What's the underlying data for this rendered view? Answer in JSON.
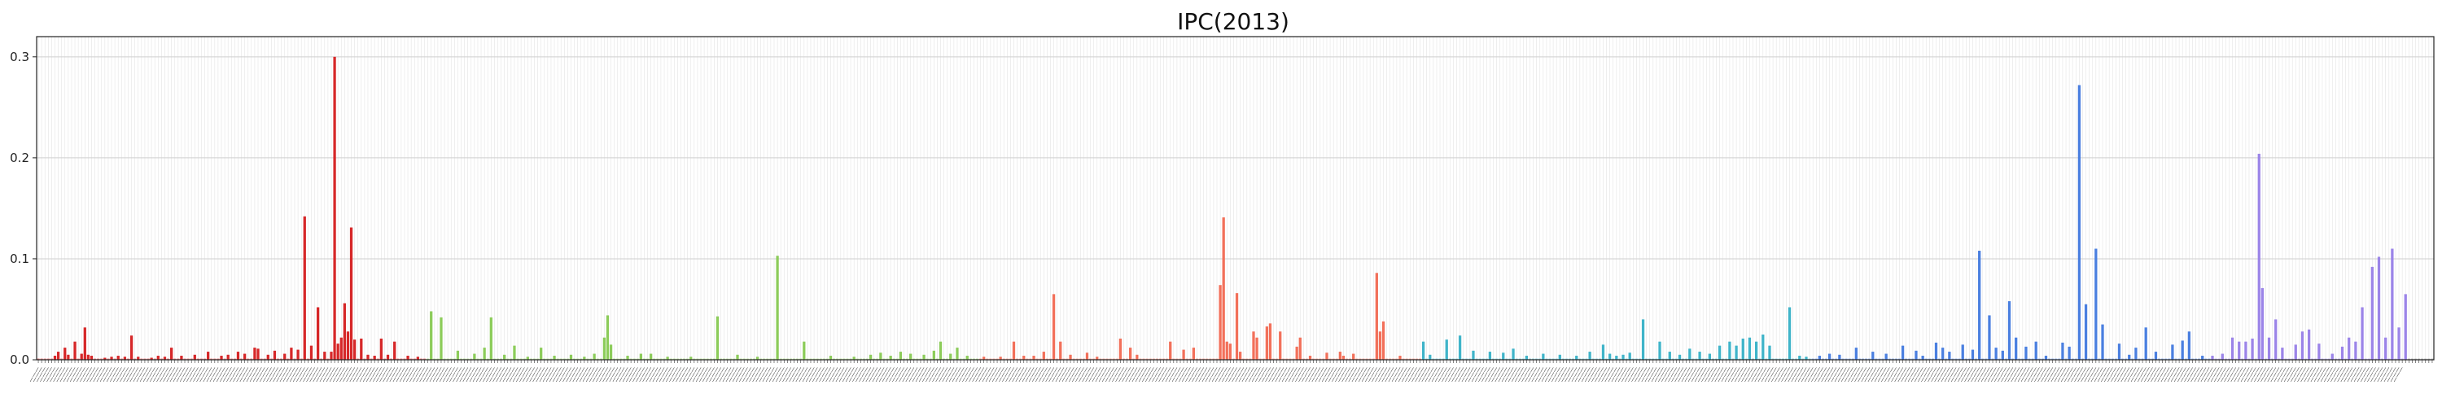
{
  "chart_data": {
    "type": "bar",
    "title": "IPC(2013)",
    "xlabel": "",
    "ylabel": "",
    "ylim": [
      0,
      0.32
    ],
    "y_ticks": [
      0.0,
      0.1,
      0.2,
      0.3
    ],
    "y_tick_labels": [
      "0.0",
      "0.1",
      "0.2",
      "0.3"
    ],
    "grid": true,
    "bar_count": 720,
    "group_colors": [
      "#d62728",
      "#8ccc5a",
      "#f2705a",
      "#3fb4c9",
      "#4a7fe0",
      "#9b84e8"
    ],
    "groups": [
      {
        "color": "#d62728",
        "start": 0,
        "end": 117,
        "bars": [
          [
            5,
            0.004
          ],
          [
            6,
            0.008
          ],
          [
            8,
            0.012
          ],
          [
            9,
            0.005
          ],
          [
            11,
            0.018
          ],
          [
            13,
            0.006
          ],
          [
            14,
            0.032
          ],
          [
            15,
            0.005
          ],
          [
            16,
            0.004
          ],
          [
            20,
            0.002
          ],
          [
            22,
            0.003
          ],
          [
            24,
            0.004
          ],
          [
            26,
            0.003
          ],
          [
            28,
            0.024
          ],
          [
            30,
            0.003
          ],
          [
            34,
            0.002
          ],
          [
            36,
            0.004
          ],
          [
            38,
            0.003
          ],
          [
            40,
            0.012
          ],
          [
            43,
            0.004
          ],
          [
            47,
            0.005
          ],
          [
            51,
            0.008
          ],
          [
            55,
            0.004
          ],
          [
            57,
            0.005
          ],
          [
            60,
            0.008
          ],
          [
            62,
            0.006
          ],
          [
            65,
            0.012
          ],
          [
            66,
            0.011
          ],
          [
            69,
            0.005
          ],
          [
            71,
            0.009
          ],
          [
            74,
            0.006
          ],
          [
            76,
            0.012
          ],
          [
            78,
            0.01
          ],
          [
            80,
            0.142
          ],
          [
            82,
            0.014
          ],
          [
            84,
            0.052
          ],
          [
            86,
            0.008
          ],
          [
            88,
            0.008
          ],
          [
            89,
            0.3
          ],
          [
            90,
            0.016
          ],
          [
            91,
            0.022
          ],
          [
            92,
            0.056
          ],
          [
            93,
            0.028
          ],
          [
            94,
            0.131
          ],
          [
            95,
            0.02
          ],
          [
            97,
            0.021
          ],
          [
            99,
            0.005
          ],
          [
            101,
            0.004
          ],
          [
            103,
            0.021
          ],
          [
            105,
            0.005
          ],
          [
            107,
            0.018
          ],
          [
            111,
            0.004
          ],
          [
            114,
            0.003
          ]
        ]
      },
      {
        "color": "#8ccc5a",
        "start": 117,
        "end": 283,
        "bars": [
          [
            118,
            0.048
          ],
          [
            121,
            0.042
          ],
          [
            126,
            0.009
          ],
          [
            131,
            0.006
          ],
          [
            134,
            0.012
          ],
          [
            136,
            0.042
          ],
          [
            140,
            0.005
          ],
          [
            143,
            0.014
          ],
          [
            147,
            0.003
          ],
          [
            151,
            0.012
          ],
          [
            155,
            0.004
          ],
          [
            160,
            0.005
          ],
          [
            164,
            0.003
          ],
          [
            167,
            0.006
          ],
          [
            170,
            0.022
          ],
          [
            171,
            0.044
          ],
          [
            172,
            0.015
          ],
          [
            177,
            0.004
          ],
          [
            181,
            0.006
          ],
          [
            184,
            0.006
          ],
          [
            189,
            0.003
          ],
          [
            196,
            0.003
          ],
          [
            204,
            0.043
          ],
          [
            210,
            0.005
          ],
          [
            216,
            0.003
          ],
          [
            222,
            0.103
          ],
          [
            230,
            0.018
          ],
          [
            238,
            0.004
          ],
          [
            245,
            0.003
          ],
          [
            250,
            0.005
          ],
          [
            253,
            0.007
          ],
          [
            256,
            0.004
          ],
          [
            259,
            0.008
          ],
          [
            262,
            0.006
          ],
          [
            266,
            0.005
          ],
          [
            269,
            0.009
          ],
          [
            271,
            0.018
          ],
          [
            274,
            0.006
          ],
          [
            276,
            0.012
          ],
          [
            279,
            0.004
          ]
        ]
      },
      {
        "color": "#f2705a",
        "start": 283,
        "end": 416,
        "bars": [
          [
            284,
            0.003
          ],
          [
            289,
            0.003
          ],
          [
            293,
            0.018
          ],
          [
            296,
            0.004
          ],
          [
            299,
            0.004
          ],
          [
            302,
            0.008
          ],
          [
            305,
            0.065
          ],
          [
            307,
            0.018
          ],
          [
            310,
            0.005
          ],
          [
            315,
            0.007
          ],
          [
            318,
            0.003
          ],
          [
            325,
            0.021
          ],
          [
            328,
            0.012
          ],
          [
            330,
            0.005
          ],
          [
            340,
            0.018
          ],
          [
            344,
            0.01
          ],
          [
            347,
            0.012
          ],
          [
            355,
            0.074
          ],
          [
            356,
            0.141
          ],
          [
            357,
            0.018
          ],
          [
            358,
            0.016
          ],
          [
            360,
            0.066
          ],
          [
            361,
            0.008
          ],
          [
            365,
            0.028
          ],
          [
            366,
            0.022
          ],
          [
            369,
            0.033
          ],
          [
            370,
            0.036
          ],
          [
            373,
            0.028
          ],
          [
            378,
            0.013
          ],
          [
            379,
            0.022
          ],
          [
            382,
            0.004
          ],
          [
            387,
            0.007
          ],
          [
            391,
            0.008
          ],
          [
            392,
            0.004
          ],
          [
            395,
            0.006
          ],
          [
            402,
            0.086
          ],
          [
            403,
            0.028
          ],
          [
            404,
            0.038
          ],
          [
            409,
            0.004
          ]
        ]
      },
      {
        "color": "#3fb4c9",
        "start": 416,
        "end": 533,
        "bars": [
          [
            416,
            0.018
          ],
          [
            418,
            0.005
          ],
          [
            423,
            0.02
          ],
          [
            427,
            0.024
          ],
          [
            431,
            0.009
          ],
          [
            436,
            0.008
          ],
          [
            440,
            0.007
          ],
          [
            443,
            0.011
          ],
          [
            447,
            0.004
          ],
          [
            452,
            0.006
          ],
          [
            457,
            0.005
          ],
          [
            462,
            0.004
          ],
          [
            466,
            0.008
          ],
          [
            470,
            0.015
          ],
          [
            472,
            0.006
          ],
          [
            474,
            0.004
          ],
          [
            476,
            0.005
          ],
          [
            478,
            0.007
          ],
          [
            482,
            0.04
          ],
          [
            487,
            0.018
          ],
          [
            490,
            0.008
          ],
          [
            493,
            0.005
          ],
          [
            496,
            0.011
          ],
          [
            499,
            0.008
          ],
          [
            502,
            0.006
          ],
          [
            505,
            0.014
          ],
          [
            508,
            0.018
          ],
          [
            510,
            0.014
          ],
          [
            512,
            0.021
          ],
          [
            514,
            0.022
          ],
          [
            516,
            0.018
          ],
          [
            518,
            0.025
          ],
          [
            520,
            0.014
          ],
          [
            526,
            0.052
          ],
          [
            529,
            0.004
          ],
          [
            531,
            0.003
          ]
        ]
      },
      {
        "color": "#4a7fe0",
        "start": 533,
        "end": 653,
        "bars": [
          [
            535,
            0.004
          ],
          [
            538,
            0.006
          ],
          [
            541,
            0.005
          ],
          [
            546,
            0.012
          ],
          [
            551,
            0.008
          ],
          [
            555,
            0.006
          ],
          [
            560,
            0.014
          ],
          [
            564,
            0.009
          ],
          [
            566,
            0.004
          ],
          [
            570,
            0.017
          ],
          [
            572,
            0.012
          ],
          [
            574,
            0.008
          ],
          [
            578,
            0.015
          ],
          [
            581,
            0.01
          ],
          [
            583,
            0.108
          ],
          [
            586,
            0.044
          ],
          [
            588,
            0.012
          ],
          [
            590,
            0.009
          ],
          [
            592,
            0.058
          ],
          [
            594,
            0.022
          ],
          [
            597,
            0.013
          ],
          [
            600,
            0.018
          ],
          [
            603,
            0.004
          ],
          [
            608,
            0.017
          ],
          [
            610,
            0.013
          ],
          [
            613,
            0.272
          ],
          [
            615,
            0.055
          ],
          [
            618,
            0.11
          ],
          [
            620,
            0.035
          ],
          [
            625,
            0.016
          ],
          [
            628,
            0.005
          ],
          [
            630,
            0.012
          ],
          [
            633,
            0.032
          ],
          [
            636,
            0.008
          ],
          [
            641,
            0.015
          ],
          [
            644,
            0.019
          ],
          [
            646,
            0.028
          ],
          [
            650,
            0.004
          ]
        ]
      },
      {
        "color": "#9b84e8",
        "start": 653,
        "end": 711,
        "bars": [
          [
            653,
            0.004
          ],
          [
            656,
            0.006
          ],
          [
            659,
            0.022
          ],
          [
            661,
            0.018
          ],
          [
            663,
            0.018
          ],
          [
            665,
            0.021
          ],
          [
            667,
            0.204
          ],
          [
            668,
            0.071
          ],
          [
            670,
            0.022
          ],
          [
            672,
            0.04
          ],
          [
            674,
            0.012
          ],
          [
            678,
            0.015
          ],
          [
            680,
            0.028
          ],
          [
            682,
            0.03
          ],
          [
            685,
            0.016
          ],
          [
            689,
            0.006
          ],
          [
            692,
            0.013
          ],
          [
            694,
            0.022
          ],
          [
            696,
            0.018
          ],
          [
            698,
            0.052
          ],
          [
            701,
            0.092
          ],
          [
            703,
            0.102
          ],
          [
            705,
            0.022
          ],
          [
            707,
            0.11
          ],
          [
            709,
            0.032
          ],
          [
            711,
            0.065
          ]
        ]
      }
    ]
  }
}
